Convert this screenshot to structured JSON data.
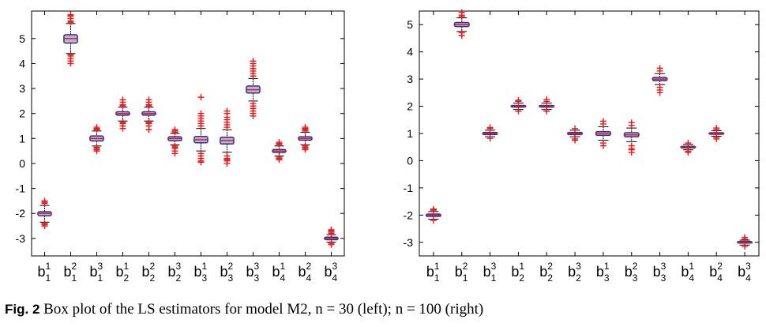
{
  "caption": {
    "label": "Fig. 2",
    "text": "Box plot of the LS estimators for model M2, n = 30 (left); n = 100 (right)"
  },
  "colors": {
    "box_edge": "#2e3192",
    "box_fill": "#b9b4d4",
    "median": "#e31a1c",
    "outlier": "#e31a1c",
    "whisker": "#000000"
  },
  "chart_data": [
    {
      "type": "box",
      "categories": [
        {
          "base": "b",
          "sup": "1",
          "sub": "1"
        },
        {
          "base": "b",
          "sup": "2",
          "sub": "1"
        },
        {
          "base": "b",
          "sup": "3",
          "sub": "1"
        },
        {
          "base": "b",
          "sup": "1",
          "sub": "2"
        },
        {
          "base": "b",
          "sup": "2",
          "sub": "2"
        },
        {
          "base": "b",
          "sup": "3",
          "sub": "2"
        },
        {
          "base": "b",
          "sup": "1",
          "sub": "3"
        },
        {
          "base": "b",
          "sup": "2",
          "sub": "3"
        },
        {
          "base": "b",
          "sup": "3",
          "sub": "3"
        },
        {
          "base": "b",
          "sup": "1",
          "sub": "4"
        },
        {
          "base": "b",
          "sup": "2",
          "sub": "4"
        },
        {
          "base": "b",
          "sup": "3",
          "sub": "4"
        }
      ],
      "ylim": [
        -3.7,
        6.1
      ],
      "yticks": [
        -3,
        -2,
        -1,
        0,
        1,
        2,
        3,
        4,
        5
      ],
      "ytick_labels": [
        "-3",
        "-2",
        "-1",
        "0",
        "1",
        "2",
        "3",
        "4",
        "5"
      ],
      "boxes": [
        {
          "median": -2.0,
          "q1": -2.09,
          "q3": -1.93,
          "whisker_low": -2.35,
          "whisker_high": -1.68,
          "outliers_low": [
            -2.4,
            -2.45,
            -2.5
          ],
          "outliers_high": [
            -1.6,
            -1.55,
            -1.5
          ]
        },
        {
          "median": 5.0,
          "q1": 4.82,
          "q3": 5.15,
          "whisker_low": 4.4,
          "whisker_high": 5.6,
          "outliers_low": [
            4.35,
            4.3,
            4.2,
            4.1,
            4.0
          ],
          "outliers_high": [
            5.65,
            5.7,
            5.8,
            5.9,
            5.95
          ]
        },
        {
          "median": 1.0,
          "q1": 0.9,
          "q3": 1.1,
          "whisker_low": 0.7,
          "whisker_high": 1.3,
          "outliers_low": [
            0.65,
            0.6,
            0.55,
            0.5
          ],
          "outliers_high": [
            1.35,
            1.4,
            1.45
          ]
        },
        {
          "median": 2.0,
          "q1": 1.93,
          "q3": 2.07,
          "whisker_low": 1.7,
          "whisker_high": 2.25,
          "outliers_low": [
            1.65,
            1.6,
            1.5,
            1.4
          ],
          "outliers_high": [
            2.3,
            2.35,
            2.45,
            2.55
          ]
        },
        {
          "median": 2.0,
          "q1": 1.93,
          "q3": 2.07,
          "whisker_low": 1.7,
          "whisker_high": 2.25,
          "outliers_low": [
            1.65,
            1.6,
            1.5,
            1.35
          ],
          "outliers_high": [
            2.3,
            2.35,
            2.45,
            2.55
          ]
        },
        {
          "median": 1.0,
          "q1": 0.91,
          "q3": 1.07,
          "whisker_low": 0.75,
          "whisker_high": 1.2,
          "outliers_low": [
            0.7,
            0.65,
            0.6,
            0.5,
            0.4
          ],
          "outliers_high": [
            1.25,
            1.3,
            1.35
          ]
        },
        {
          "median": 0.95,
          "q1": 0.83,
          "q3": 1.08,
          "whisker_low": 0.5,
          "whisker_high": 1.4,
          "outliers_low": [
            0.4,
            0.3,
            0.2,
            0.1,
            0.05
          ],
          "outliers_high": [
            1.5,
            1.6,
            1.7,
            1.8,
            1.9,
            2.0,
            2.65
          ]
        },
        {
          "median": 0.92,
          "q1": 0.78,
          "q3": 1.05,
          "whisker_low": 0.45,
          "whisker_high": 1.35,
          "outliers_low": [
            0.3,
            0.2,
            0.15,
            0.1,
            0.0
          ],
          "outliers_high": [
            1.45,
            1.55,
            1.65,
            1.75,
            1.85,
            2.0,
            2.1
          ]
        },
        {
          "median": 2.95,
          "q1": 2.82,
          "q3": 3.1,
          "whisker_low": 2.5,
          "whisker_high": 3.4,
          "outliers_low": [
            2.4,
            2.3,
            2.2,
            2.1,
            2.0,
            1.9
          ],
          "outliers_high": [
            3.5,
            3.6,
            3.7,
            3.8,
            3.9,
            4.0,
            4.1
          ]
        },
        {
          "median": 0.5,
          "q1": 0.44,
          "q3": 0.56,
          "whisker_low": 0.3,
          "whisker_high": 0.7,
          "outliers_low": [
            0.25,
            0.2,
            0.15
          ],
          "outliers_high": [
            0.75,
            0.8,
            0.85
          ]
        },
        {
          "median": 1.0,
          "q1": 0.93,
          "q3": 1.07,
          "whisker_low": 0.75,
          "whisker_high": 1.25,
          "outliers_low": [
            0.7,
            0.65,
            0.6,
            0.55
          ],
          "outliers_high": [
            1.3,
            1.35,
            1.4,
            1.45
          ]
        },
        {
          "median": -3.0,
          "q1": -3.05,
          "q3": -2.95,
          "whisker_low": -3.15,
          "whisker_high": -2.85,
          "outliers_low": [
            -3.2,
            -3.25
          ],
          "outliers_high": [
            -2.8,
            -2.75,
            -2.7,
            -2.65
          ]
        }
      ]
    },
    {
      "type": "box",
      "categories": [
        {
          "base": "b",
          "sup": "1",
          "sub": "1"
        },
        {
          "base": "b",
          "sup": "2",
          "sub": "1"
        },
        {
          "base": "b",
          "sup": "3",
          "sub": "1"
        },
        {
          "base": "b",
          "sup": "1",
          "sub": "2"
        },
        {
          "base": "b",
          "sup": "2",
          "sub": "2"
        },
        {
          "base": "b",
          "sup": "3",
          "sub": "2"
        },
        {
          "base": "b",
          "sup": "1",
          "sub": "3"
        },
        {
          "base": "b",
          "sup": "2",
          "sub": "3"
        },
        {
          "base": "b",
          "sup": "3",
          "sub": "3"
        },
        {
          "base": "b",
          "sup": "1",
          "sub": "4"
        },
        {
          "base": "b",
          "sup": "2",
          "sub": "4"
        },
        {
          "base": "b",
          "sup": "3",
          "sub": "4"
        }
      ],
      "ylim": [
        -3.5,
        5.5
      ],
      "yticks": [
        -3,
        -2,
        -1,
        0,
        1,
        2,
        3,
        4,
        5
      ],
      "ytick_labels": [
        "-3",
        "-2",
        "-1",
        "0",
        "1",
        "2",
        "3",
        "4",
        "5"
      ],
      "boxes": [
        {
          "median": -2.0,
          "q1": -2.05,
          "q3": -1.96,
          "whisker_low": -2.15,
          "whisker_high": -1.87,
          "outliers_low": [
            -2.2
          ],
          "outliers_high": [
            -1.82,
            -1.78
          ]
        },
        {
          "median": 5.0,
          "q1": 4.93,
          "q3": 5.08,
          "whisker_low": 4.75,
          "whisker_high": 5.25,
          "outliers_low": [
            4.7,
            4.6
          ],
          "outliers_high": [
            5.3,
            5.35,
            5.45
          ]
        },
        {
          "median": 1.0,
          "q1": 0.96,
          "q3": 1.04,
          "whisker_low": 0.88,
          "whisker_high": 1.12,
          "outliers_low": [
            0.82
          ],
          "outliers_high": [
            1.18,
            1.22
          ]
        },
        {
          "median": 2.0,
          "q1": 1.97,
          "q3": 2.03,
          "whisker_low": 1.88,
          "whisker_high": 2.12,
          "outliers_low": [
            1.82
          ],
          "outliers_high": [
            2.18,
            2.22
          ]
        },
        {
          "median": 2.0,
          "q1": 1.97,
          "q3": 2.03,
          "whisker_low": 1.88,
          "whisker_high": 2.12,
          "outliers_low": [
            1.82
          ],
          "outliers_high": [
            2.18,
            2.25
          ]
        },
        {
          "median": 1.0,
          "q1": 0.96,
          "q3": 1.04,
          "whisker_low": 0.88,
          "whisker_high": 1.12,
          "outliers_low": [
            0.8,
            0.75
          ],
          "outliers_high": [
            1.18
          ]
        },
        {
          "median": 1.0,
          "q1": 0.93,
          "q3": 1.07,
          "whisker_low": 0.75,
          "whisker_high": 1.25,
          "outliers_low": [
            0.65,
            0.55
          ],
          "outliers_high": [
            1.35,
            1.45
          ]
        },
        {
          "median": 0.95,
          "q1": 0.88,
          "q3": 1.03,
          "whisker_low": 0.7,
          "whisker_high": 1.2,
          "outliers_low": [
            0.55,
            0.45,
            0.4,
            0.3
          ],
          "outliers_high": [
            1.3,
            1.4
          ]
        },
        {
          "median": 3.0,
          "q1": 2.94,
          "q3": 3.06,
          "whisker_low": 2.8,
          "whisker_high": 3.2,
          "outliers_low": [
            2.7,
            2.6,
            2.5
          ],
          "outliers_high": [
            3.3,
            3.4
          ]
        },
        {
          "median": 0.5,
          "q1": 0.47,
          "q3": 0.53,
          "whisker_low": 0.4,
          "whisker_high": 0.6,
          "outliers_low": [
            0.35,
            0.3
          ],
          "outliers_high": [
            0.65
          ]
        },
        {
          "median": 1.0,
          "q1": 0.97,
          "q3": 1.03,
          "whisker_low": 0.9,
          "whisker_high": 1.1,
          "outliers_low": [
            0.85,
            0.8
          ],
          "outliers_high": [
            1.15,
            1.2
          ]
        },
        {
          "median": -3.0,
          "q1": -3.03,
          "q3": -2.97,
          "whisker_low": -3.1,
          "whisker_high": -2.92,
          "outliers_low": [
            -3.15
          ],
          "outliers_high": [
            -2.88,
            -2.82
          ]
        }
      ]
    }
  ]
}
